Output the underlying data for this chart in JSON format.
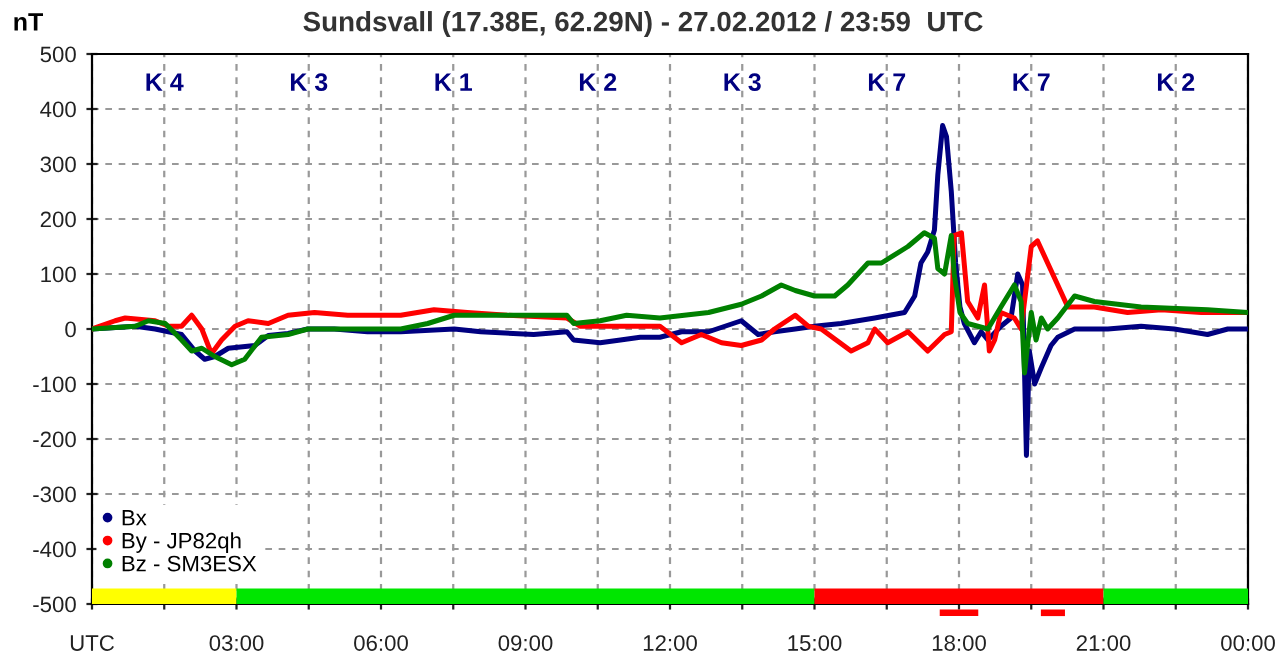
{
  "chart_data": {
    "type": "line",
    "title": "Sundsvall (17.38E, 62.29N) - 27.02.2012 / 23:59  UTC",
    "ylabel": "nT",
    "xlim": [
      0,
      24
    ],
    "ylim": [
      -500,
      500
    ],
    "xticks": [
      {
        "value": 0,
        "label": "UTC"
      },
      {
        "value": 1.5,
        "label": null
      },
      {
        "value": 3,
        "label": "03:00"
      },
      {
        "value": 4.5,
        "label": null
      },
      {
        "value": 6,
        "label": "06:00"
      },
      {
        "value": 7.5,
        "label": null
      },
      {
        "value": 9,
        "label": "09:00"
      },
      {
        "value": 10.5,
        "label": null
      },
      {
        "value": 12,
        "label": "12:00"
      },
      {
        "value": 13.5,
        "label": null
      },
      {
        "value": 15,
        "label": "15:00"
      },
      {
        "value": 16.5,
        "label": null
      },
      {
        "value": 18,
        "label": "18:00"
      },
      {
        "value": 19.5,
        "label": null
      },
      {
        "value": 21,
        "label": "21:00"
      },
      {
        "value": 22.5,
        "label": null
      },
      {
        "value": 24,
        "label": "00:00"
      }
    ],
    "yticks": [
      -500,
      -400,
      -300,
      -200,
      -100,
      0,
      100,
      200,
      300,
      400,
      500
    ],
    "grid": true,
    "legend": "bottom left",
    "marker": "none",
    "line_style": "solid",
    "series": [
      {
        "name": "Bx",
        "color": "#000080",
        "x": [
          0,
          0.9,
          1.31,
          1.86,
          2.14,
          2.34,
          2.55,
          2.83,
          3.38,
          3.66,
          4.07,
          4.48,
          5.03,
          5.72,
          6.41,
          7.52,
          8.07,
          9.17,
          9.86,
          10,
          10.55,
          10.97,
          11.38,
          11.79,
          12.24,
          12.8,
          13.48,
          13.83,
          14.17,
          14.6,
          15,
          15.55,
          16.25,
          16.87,
          17.08,
          17.21,
          17.35,
          17.49,
          17.56,
          17.66,
          17.74,
          17.84,
          17.93,
          18.02,
          18.11,
          18.32,
          18.46,
          18.6,
          18.87,
          19.08,
          19.22,
          19.32,
          19.4,
          19.46,
          19.57,
          19.71,
          19.91,
          20.05,
          20.4,
          21.09,
          21.78,
          22.47,
          23.16,
          23.58,
          24
        ],
        "values": [
          0,
          5,
          0,
          -10,
          -40,
          -55,
          -50,
          -35,
          -30,
          -12,
          -8,
          0,
          0,
          -5,
          -5,
          0,
          -5,
          -10,
          -5,
          -20,
          -25,
          -20,
          -15,
          -15,
          -5,
          -5,
          15,
          -10,
          -5,
          0,
          5,
          10,
          20,
          30,
          60,
          120,
          140,
          180,
          280,
          370,
          350,
          250,
          120,
          40,
          10,
          -25,
          -5,
          -20,
          5,
          20,
          100,
          80,
          -230,
          -40,
          -100,
          -70,
          -30,
          -15,
          0,
          0,
          5,
          0,
          -10,
          0,
          0
        ]
      },
      {
        "name": "By - JP82qh",
        "color": "#ff0000",
        "x": [
          0,
          0.48,
          0.69,
          1.31,
          1.59,
          1.86,
          2.07,
          2.28,
          2.48,
          2.69,
          2.97,
          3.24,
          3.66,
          4.07,
          4.62,
          5.31,
          6.41,
          7.1,
          7.79,
          8.62,
          9.86,
          10.14,
          11.79,
          12.24,
          12.65,
          13.07,
          13.48,
          13.9,
          14.17,
          14.6,
          14.87,
          15.14,
          15.76,
          16.11,
          16.25,
          16.52,
          16.94,
          17.35,
          17.7,
          17.84,
          17.9,
          18.05,
          18.18,
          18.39,
          18.53,
          18.63,
          18.74,
          18.87,
          19.15,
          19.29,
          19.5,
          19.63,
          19.84,
          20.05,
          20.26,
          20.81,
          21.5,
          22.2,
          23.03,
          24
        ],
        "values": [
          0,
          15,
          20,
          15,
          5,
          5,
          25,
          0,
          -45,
          -20,
          5,
          15,
          10,
          25,
          30,
          25,
          25,
          35,
          30,
          25,
          20,
          5,
          5,
          -25,
          -10,
          -25,
          -30,
          -20,
          0,
          25,
          5,
          0,
          -40,
          -25,
          0,
          -25,
          -5,
          -40,
          -10,
          -5,
          170,
          175,
          50,
          20,
          80,
          -40,
          -20,
          30,
          20,
          0,
          150,
          160,
          120,
          80,
          40,
          40,
          30,
          35,
          30,
          30
        ]
      },
      {
        "name": "Bz - SM3ESX",
        "color": "#008000",
        "x": [
          0,
          0.9,
          1.17,
          1.52,
          1.86,
          2.07,
          2.28,
          2.55,
          2.9,
          3.17,
          3.52,
          4.07,
          4.48,
          6.41,
          6.97,
          7.52,
          8.07,
          9.86,
          10,
          10.55,
          11.1,
          11.79,
          12.8,
          13.48,
          13.9,
          14.31,
          14.6,
          15,
          15.42,
          15.69,
          16.11,
          16.39,
          16.94,
          17.28,
          17.49,
          17.56,
          17.7,
          17.84,
          17.9,
          18.02,
          18.18,
          18.6,
          18.87,
          19.15,
          19.29,
          19.36,
          19.5,
          19.6,
          19.71,
          19.84,
          20.05,
          20.4,
          20.81,
          21.78,
          23.16,
          24
        ],
        "values": [
          0,
          5,
          15,
          10,
          -20,
          -40,
          -35,
          -50,
          -65,
          -55,
          -15,
          -10,
          0,
          0,
          10,
          25,
          25,
          25,
          10,
          15,
          25,
          20,
          30,
          45,
          60,
          80,
          70,
          60,
          60,
          80,
          120,
          120,
          150,
          175,
          165,
          110,
          100,
          170,
          100,
          30,
          10,
          0,
          40,
          80,
          50,
          -80,
          30,
          -20,
          20,
          0,
          20,
          60,
          50,
          40,
          35,
          30
        ]
      }
    ],
    "annotations": [
      "K 4",
      "K 3",
      "K 1",
      "K 2",
      "K 3",
      "K 7",
      "K 7",
      "K 2"
    ]
  }
}
